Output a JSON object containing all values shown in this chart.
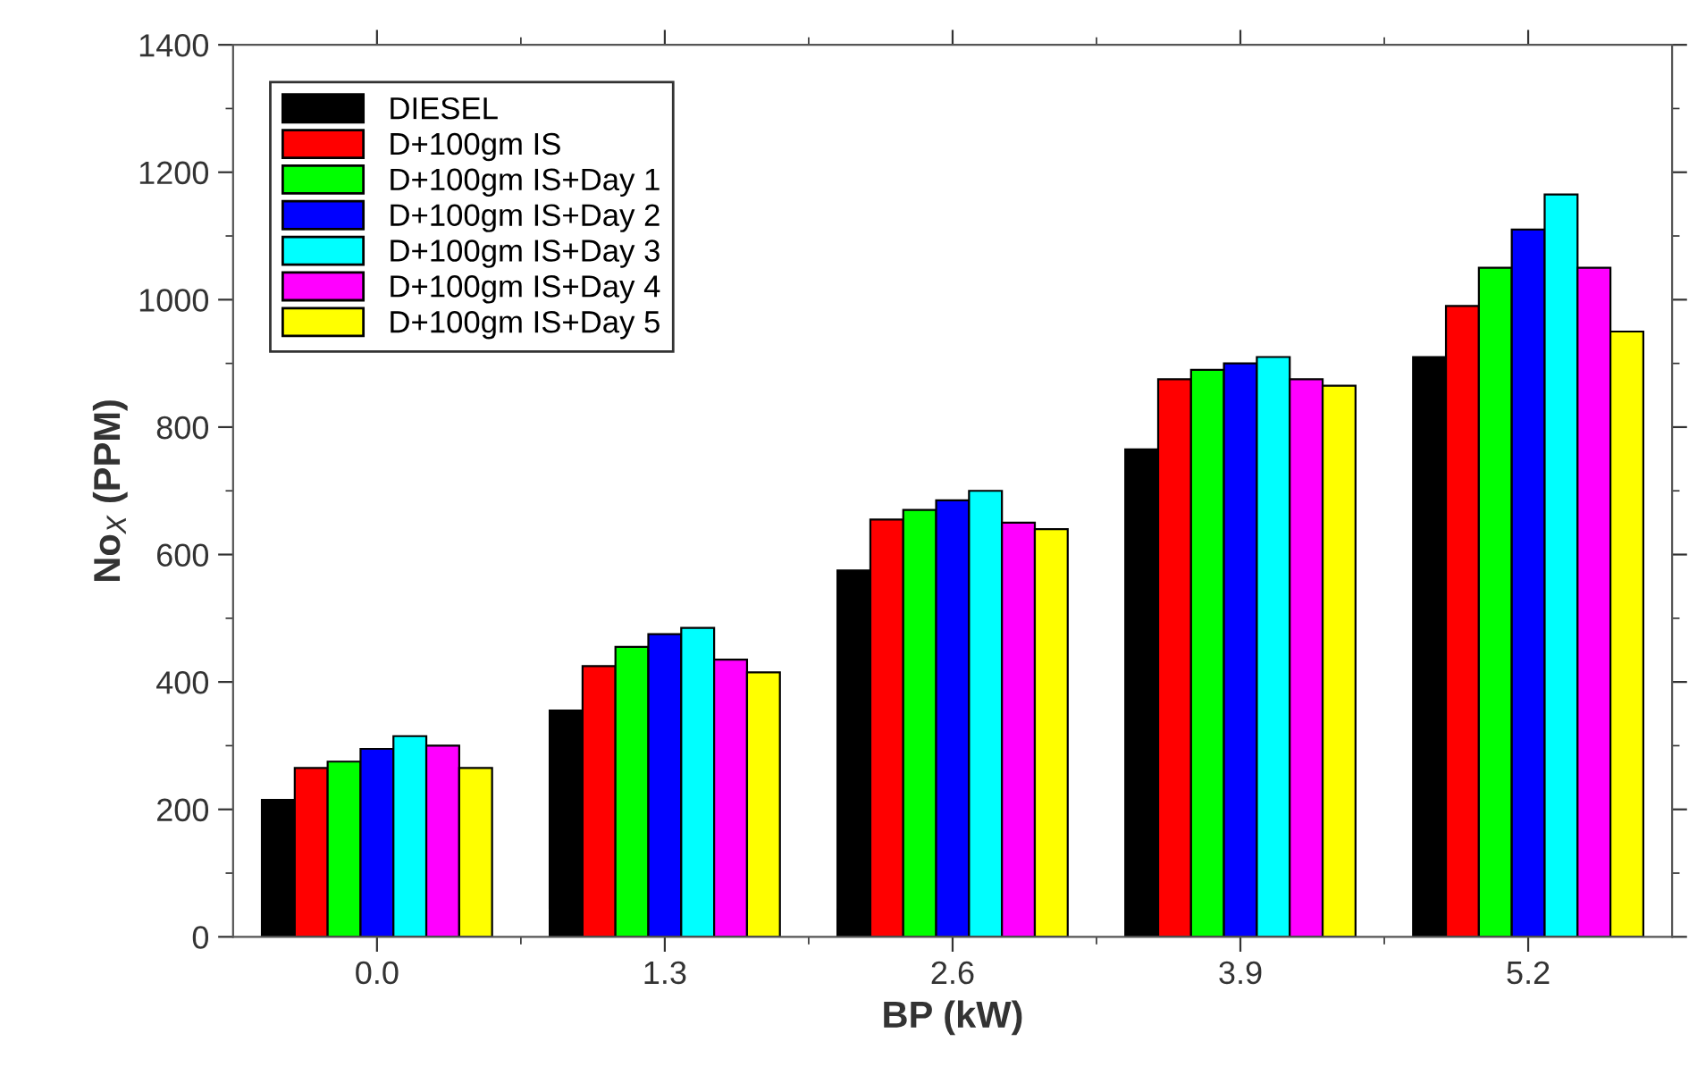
{
  "chart_data": {
    "type": "bar",
    "xlabel": "BP (kW)",
    "ylabel": "No$_{X}$ (PPM)",
    "categories": [
      "0.0",
      "1.3",
      "2.6",
      "3.9",
      "5.2"
    ],
    "series": [
      {
        "name": "DIESEL",
        "color": "#000000",
        "values": [
          215,
          355,
          575,
          765,
          910
        ]
      },
      {
        "name": "D+100gm IS",
        "color": "#ff0000",
        "values": [
          265,
          425,
          655,
          875,
          990
        ]
      },
      {
        "name": "D+100gm IS+Day 1",
        "color": "#00ff00",
        "values": [
          275,
          455,
          670,
          890,
          1050
        ]
      },
      {
        "name": "D+100gm IS+Day 2",
        "color": "#0000ff",
        "values": [
          295,
          475,
          685,
          900,
          1110
        ]
      },
      {
        "name": "D+100gm IS+Day 3",
        "color": "#00ffff",
        "values": [
          315,
          485,
          700,
          910,
          1165
        ]
      },
      {
        "name": "D+100gm IS+Day 4",
        "color": "#ff00ff",
        "values": [
          300,
          435,
          650,
          875,
          1050
        ]
      },
      {
        "name": "D+100gm IS+Day 5",
        "color": "#ffff00",
        "values": [
          265,
          415,
          640,
          865,
          950
        ]
      }
    ],
    "ylim": [
      0,
      1400
    ],
    "yticks": [
      0,
      200,
      400,
      600,
      800,
      1000,
      1200,
      1400
    ],
    "grid": false,
    "legend": "top left"
  }
}
